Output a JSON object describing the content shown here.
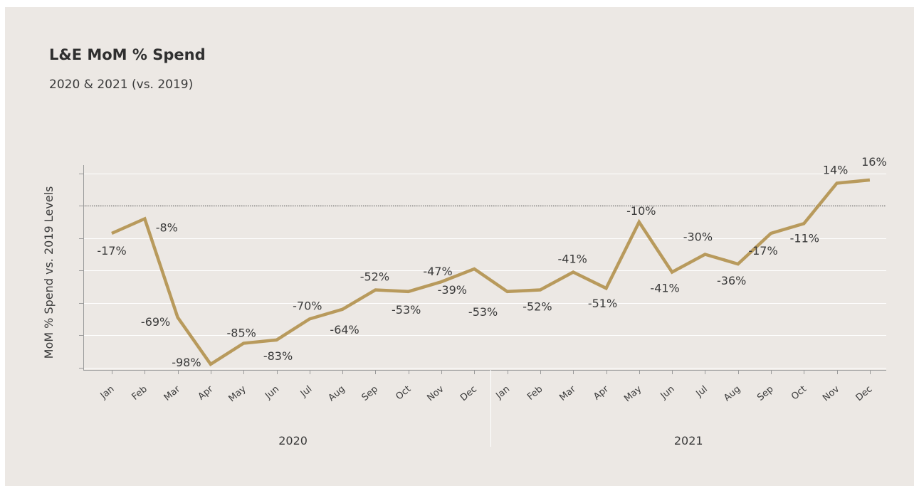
{
  "title": "L&E MoM % Spend",
  "subtitle": "2020 & 2021 (vs. 2019)",
  "colors": {
    "line": "#b89a5c",
    "background": "#ece8e4",
    "grid": "#ffffff",
    "text": "#3a3a3a"
  },
  "chart_data": {
    "type": "line",
    "title": "L&E MoM % Spend",
    "subtitle": "2020 & 2021 (vs. 2019)",
    "xlabel": "",
    "ylabel": "MoM % Spend vs. 2019 Levels",
    "ylim": [
      -108,
      23
    ],
    "grid": true,
    "reference_line": 0,
    "groups": [
      {
        "name": "2020",
        "categories": [
          "Jan",
          "Feb",
          "Mar",
          "Apr",
          "May",
          "Jun",
          "Jul",
          "Aug",
          "Sep",
          "Oct",
          "Nov",
          "Dec"
        ]
      },
      {
        "name": "2021",
        "categories": [
          "Jan",
          "Feb",
          "Mar",
          "Apr",
          "May",
          "Jun",
          "Jul",
          "Aug",
          "Sep",
          "Oct",
          "Nov",
          "Dec"
        ]
      }
    ],
    "categories": [
      "Jan",
      "Feb",
      "Mar",
      "Apr",
      "May",
      "Jun",
      "Jul",
      "Aug",
      "Sep",
      "Oct",
      "Nov",
      "Dec",
      "Jan",
      "Feb",
      "Mar",
      "Apr",
      "May",
      "Jun",
      "Jul",
      "Aug",
      "Sep",
      "Oct",
      "Nov",
      "Dec"
    ],
    "values": [
      -17,
      -8,
      -69,
      -98,
      -85,
      -83,
      -70,
      -64,
      -52,
      -53,
      -47,
      -39,
      -53,
      -52,
      -41,
      -51,
      -10,
      -41,
      -30,
      -36,
      -17,
      -11,
      14,
      16
    ],
    "data_labels": [
      "-17%",
      "-8%",
      "-69%",
      "-98%",
      "-85%",
      "-83%",
      "-70%",
      "-64%",
      "-52%",
      "-53%",
      "-47%",
      "-39%",
      "-53%",
      "-52%",
      "-41%",
      "-51%",
      "-10%",
      "-41%",
      "-30%",
      "-36%",
      "-17%",
      "-11%",
      "14%",
      "16%"
    ]
  }
}
